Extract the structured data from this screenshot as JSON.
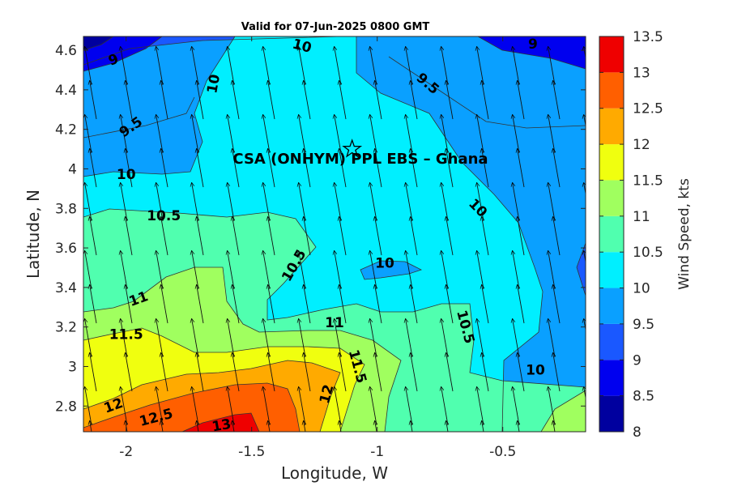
{
  "chart_data": {
    "type": "contour",
    "title": "Valid for 07-Jun-2025 0800 GMT",
    "xlabel": "Longitude, W",
    "ylabel": "Latitude, N",
    "xlim": [
      -2.17,
      -0.17
    ],
    "ylim": [
      2.67,
      4.67
    ],
    "xticks": [
      "-2",
      "-1.5",
      "-1",
      "-0.5"
    ],
    "xtick_values": [
      -2,
      -1.5,
      -1,
      -0.5
    ],
    "yticks": [
      "2.8",
      "3",
      "3.2",
      "3.4",
      "3.6",
      "3.8",
      "4",
      "4.2",
      "4.4",
      "4.6"
    ],
    "ytick_values": [
      2.8,
      3.0,
      3.2,
      3.4,
      3.6,
      3.8,
      4.0,
      4.2,
      4.4,
      4.6
    ],
    "colorbar": {
      "label": "Wind Speed, kts",
      "levels": [
        8,
        8.5,
        9,
        9.5,
        10,
        10.5,
        11,
        11.5,
        12,
        12.5,
        13,
        13.5
      ],
      "tick_labels": [
        "8",
        "8.5",
        "9",
        "9.5",
        "10",
        "10.5",
        "11",
        "11.5",
        "12",
        "12.5",
        "13",
        "13.5"
      ],
      "colors": [
        "#00009f",
        "#0000ef",
        "#1a58ff",
        "#0aa0ff",
        "#00efff",
        "#50ffaf",
        "#a0ff5f",
        "#f0ff0f",
        "#ffaa00",
        "#ff5f00",
        "#ef0000",
        "#9f0000"
      ]
    },
    "site": {
      "name": "CSA (ONHYM) PPL EBS  – Ghana",
      "lon": -1.1,
      "lat": 4.1,
      "marker": "star"
    },
    "contour_labels": [
      {
        "text": "10",
        "lon": -1.3,
        "lat": 4.62,
        "rot": 15
      },
      {
        "text": "9",
        "lon": -2.05,
        "lat": 4.55,
        "rot": -20
      },
      {
        "text": "9",
        "lon": -0.38,
        "lat": 4.63,
        "rot": 0
      },
      {
        "text": "10",
        "lon": -1.65,
        "lat": 4.43,
        "rot": -80
      },
      {
        "text": "9.5",
        "lon": -0.8,
        "lat": 4.43,
        "rot": 40
      },
      {
        "text": "9.5",
        "lon": -1.98,
        "lat": 4.21,
        "rot": -35
      },
      {
        "text": "10",
        "lon": -2.0,
        "lat": 3.97,
        "rot": 0
      },
      {
        "text": "10",
        "lon": -0.6,
        "lat": 3.8,
        "rot": 45
      },
      {
        "text": "10.5",
        "lon": -1.85,
        "lat": 3.76,
        "rot": 0
      },
      {
        "text": "10.5",
        "lon": -1.33,
        "lat": 3.51,
        "rot": -60
      },
      {
        "text": "10",
        "lon": -0.97,
        "lat": 3.52,
        "rot": 0
      },
      {
        "text": "11",
        "lon": -1.95,
        "lat": 3.34,
        "rot": -20
      },
      {
        "text": "11",
        "lon": -1.17,
        "lat": 3.22,
        "rot": 0
      },
      {
        "text": "10.5",
        "lon": -0.65,
        "lat": 3.2,
        "rot": 75
      },
      {
        "text": "11.5",
        "lon": -2.0,
        "lat": 3.16,
        "rot": 0
      },
      {
        "text": "11.5",
        "lon": -1.08,
        "lat": 3.0,
        "rot": 75
      },
      {
        "text": "10",
        "lon": -0.37,
        "lat": 2.98,
        "rot": 0
      },
      {
        "text": "12",
        "lon": -1.2,
        "lat": 2.86,
        "rot": -75
      },
      {
        "text": "12",
        "lon": -2.05,
        "lat": 2.8,
        "rot": -20
      },
      {
        "text": "12.5",
        "lon": -1.88,
        "lat": 2.74,
        "rot": -15
      },
      {
        "text": "13",
        "lon": -1.62,
        "lat": 2.7,
        "rot": -10
      }
    ],
    "wind_direction": "from SSE (toward NNW)",
    "grid": false
  }
}
